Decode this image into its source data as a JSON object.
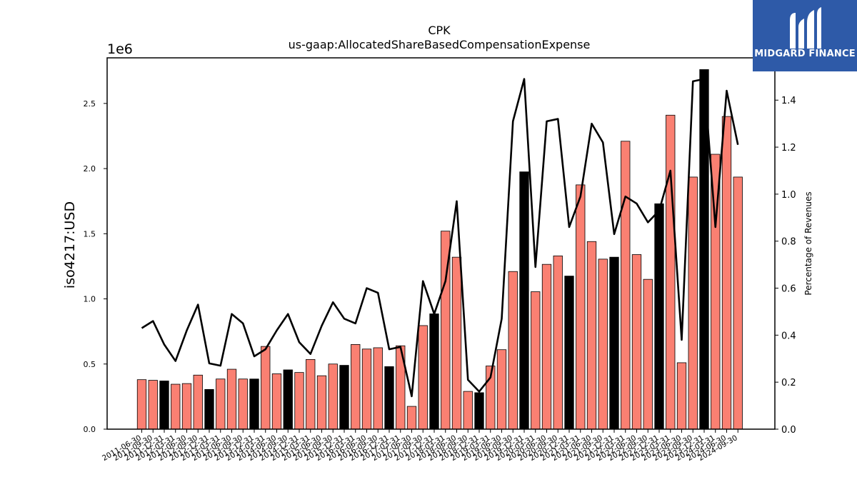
{
  "chart_data": {
    "type": "bar",
    "title": "CPK",
    "subtitle": "us-gaap:AllocatedShareBasedCompensationExpense",
    "ylabel": "iso4217:USD",
    "y_offset_label": "1e6",
    "y2label": "Percentage of Revenues",
    "ylim": [
      0,
      2850000
    ],
    "y2lim": [
      0,
      1.58
    ],
    "y_ticks": [
      "0.0",
      "0.5",
      "1.0",
      "1.5",
      "2.0",
      "2.5"
    ],
    "y_tick_values": [
      0,
      500000,
      1000000,
      1500000,
      2000000,
      2500000
    ],
    "y2_ticks": [
      "0.0",
      "0.2",
      "0.4",
      "0.6",
      "0.8",
      "1.0",
      "1.2",
      "1.4"
    ],
    "y2_tick_values": [
      0,
      0.2,
      0.4,
      0.6,
      0.8,
      1.0,
      1.2,
      1.4
    ],
    "bar_color": "#fa8072",
    "highlight_color": "#000000",
    "line_color": "#000000",
    "categories": [
      "2011-06-30",
      "2011-09-30",
      "2011-12-31",
      "2012-03-31",
      "2012-06-30",
      "2012-09-30",
      "2012-12-31",
      "2013-03-31",
      "2013-06-30",
      "2013-09-30",
      "2013-12-31",
      "2014-03-31",
      "2014-06-30",
      "2014-09-30",
      "2014-12-31",
      "2015-03-31",
      "2015-06-30",
      "2015-09-30",
      "2015-12-31",
      "2016-03-31",
      "2016-06-30",
      "2016-09-30",
      "2016-12-31",
      "2017-03-31",
      "2017-06-30",
      "2017-09-30",
      "2017-12-31",
      "2018-03-31",
      "2018-06-30",
      "2018-09-30",
      "2018-12-31",
      "2019-03-31",
      "2019-06-30",
      "2019-09-30",
      "2019-12-31",
      "2020-03-31",
      "2020-06-30",
      "2020-09-30",
      "2020-12-31",
      "2021-03-31",
      "2021-06-30",
      "2021-09-30",
      "2021-12-31",
      "2022-03-31",
      "2022-06-30",
      "2022-09-30",
      "2022-12-31",
      "2023-03-31",
      "2023-06-30",
      "2023-09-30",
      "2023-12-31",
      "2024-03-31",
      "2024-06-30",
      "2024-09-30"
    ],
    "values": [
      380000,
      375000,
      370000,
      345000,
      350000,
      415000,
      305000,
      385000,
      460000,
      385000,
      385000,
      635000,
      425000,
      455000,
      435000,
      535000,
      410000,
      500000,
      490000,
      650000,
      615000,
      625000,
      480000,
      640000,
      175000,
      795000,
      885000,
      1520000,
      1320000,
      290000,
      280000,
      485000,
      610000,
      1210000,
      1975000,
      1055000,
      1265000,
      1330000,
      1175000,
      1875000,
      1440000,
      1305000,
      1320000,
      2210000,
      1340000,
      1150000,
      1730000,
      2410000,
      510000,
      1935000,
      2760000,
      2110000,
      2400000,
      1935000
    ],
    "highlighted": [
      false,
      false,
      true,
      false,
      false,
      false,
      true,
      false,
      false,
      false,
      true,
      false,
      false,
      true,
      false,
      false,
      false,
      false,
      true,
      false,
      false,
      false,
      true,
      false,
      false,
      false,
      true,
      false,
      false,
      false,
      true,
      false,
      false,
      false,
      true,
      false,
      false,
      false,
      true,
      false,
      false,
      false,
      true,
      false,
      false,
      false,
      true,
      false,
      false,
      false,
      true,
      false,
      false,
      false
    ],
    "ratio_series": [
      0.43,
      0.46,
      0.36,
      0.29,
      0.42,
      0.53,
      0.28,
      0.27,
      0.49,
      0.45,
      0.31,
      0.34,
      0.42,
      0.49,
      0.37,
      0.32,
      0.44,
      0.54,
      0.47,
      0.45,
      0.6,
      0.58,
      0.34,
      0.35,
      0.14,
      0.63,
      0.49,
      0.63,
      0.97,
      0.21,
      0.16,
      0.22,
      0.47,
      1.31,
      1.49,
      0.69,
      1.31,
      1.32,
      0.86,
      0.99,
      1.3,
      1.22,
      0.83,
      0.99,
      0.96,
      0.88,
      0.93,
      1.1,
      0.38,
      1.48,
      1.49,
      0.86,
      1.44,
      1.21
    ]
  },
  "logo": {
    "text": "MIDGARD FINANCE",
    "icon": "midgard-logo-icon"
  }
}
